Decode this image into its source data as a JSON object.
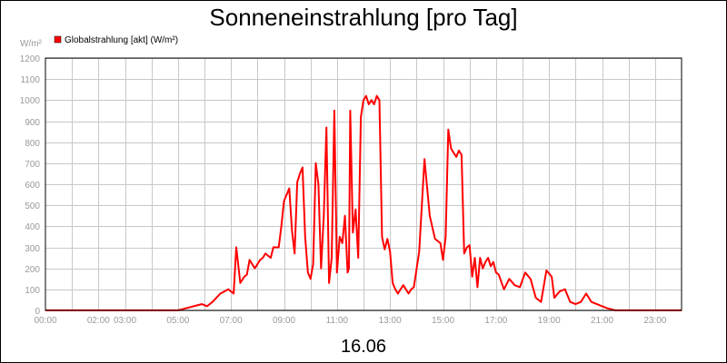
{
  "chart_data": {
    "type": "line",
    "title": "Sonneneinstrahlung [pro Tag]",
    "date_label": "16.06",
    "unit_label": "W/m²",
    "legend_placement": "top-left",
    "grid": true,
    "ylim": [
      0,
      1200
    ],
    "xlim": [
      0,
      24
    ],
    "y_ticks": [
      "0",
      "100",
      "200",
      "300",
      "400",
      "500",
      "600",
      "700",
      "800",
      "900",
      "1000",
      "1100",
      "1200"
    ],
    "x_ticks": [
      {
        "x": 0,
        "label": "00:00"
      },
      {
        "x": 2,
        "label": "02:00"
      },
      {
        "x": 3,
        "label": "03:00"
      },
      {
        "x": 5,
        "label": "05:00"
      },
      {
        "x": 7,
        "label": "07:00"
      },
      {
        "x": 9,
        "label": "09:00"
      },
      {
        "x": 11,
        "label": "11:00"
      },
      {
        "x": 13,
        "label": "13:00"
      },
      {
        "x": 15,
        "label": "15:00"
      },
      {
        "x": 17,
        "label": "17:00"
      },
      {
        "x": 19,
        "label": "19:00"
      },
      {
        "x": 21,
        "label": "21:00"
      },
      {
        "x": 23,
        "label": "23:00"
      }
    ],
    "series": [
      {
        "name": "Globalstrahlung [akt] (W/m²)",
        "color": "#ff0000",
        "x": [
          0,
          5.0,
          5.3,
          5.6,
          5.9,
          6.1,
          6.3,
          6.6,
          6.9,
          7.1,
          7.2,
          7.35,
          7.5,
          7.6,
          7.7,
          7.9,
          8.1,
          8.2,
          8.3,
          8.5,
          8.6,
          8.8,
          8.9,
          9.0,
          9.2,
          9.3,
          9.4,
          9.5,
          9.6,
          9.7,
          9.8,
          9.9,
          10.0,
          10.1,
          10.2,
          10.3,
          10.4,
          10.5,
          10.6,
          10.7,
          10.8,
          10.9,
          11.0,
          11.1,
          11.2,
          11.3,
          11.4,
          11.45,
          11.5,
          11.6,
          11.7,
          11.8,
          11.9,
          12.0,
          12.1,
          12.2,
          12.3,
          12.4,
          12.5,
          12.6,
          12.7,
          12.8,
          12.9,
          13.0,
          13.1,
          13.2,
          13.3,
          13.4,
          13.5,
          13.6,
          13.7,
          13.8,
          13.9,
          14.1,
          14.3,
          14.5,
          14.7,
          14.9,
          15.0,
          15.1,
          15.2,
          15.3,
          15.4,
          15.5,
          15.6,
          15.7,
          15.8,
          15.9,
          16.0,
          16.1,
          16.2,
          16.3,
          16.4,
          16.5,
          16.6,
          16.7,
          16.8,
          16.9,
          17.0,
          17.1,
          17.3,
          17.5,
          17.7,
          17.9,
          18.1,
          18.3,
          18.5,
          18.7,
          18.9,
          19.1,
          19.2,
          19.4,
          19.6,
          19.8,
          20.0,
          20.2,
          20.4,
          20.6,
          20.8,
          21.0,
          21.2,
          21.5,
          22.0,
          24.0
        ],
        "values": [
          0,
          0,
          10,
          20,
          30,
          20,
          40,
          80,
          100,
          80,
          300,
          130,
          160,
          170,
          240,
          200,
          240,
          250,
          270,
          250,
          300,
          300,
          400,
          520,
          580,
          380,
          270,
          610,
          650,
          680,
          350,
          180,
          150,
          220,
          700,
          600,
          200,
          450,
          870,
          130,
          250,
          950,
          180,
          350,
          320,
          450,
          180,
          200,
          950,
          370,
          480,
          250,
          920,
          1000,
          1020,
          980,
          1000,
          980,
          1020,
          1000,
          350,
          290,
          340,
          280,
          130,
          100,
          80,
          100,
          120,
          100,
          80,
          100,
          110,
          280,
          720,
          450,
          340,
          320,
          240,
          350,
          860,
          770,
          750,
          730,
          760,
          740,
          270,
          300,
          310,
          160,
          250,
          110,
          250,
          200,
          230,
          250,
          210,
          230,
          180,
          170,
          100,
          150,
          120,
          110,
          180,
          150,
          60,
          40,
          190,
          160,
          60,
          90,
          100,
          40,
          30,
          40,
          80,
          40,
          30,
          20,
          10,
          0,
          0,
          0
        ]
      }
    ]
  }
}
